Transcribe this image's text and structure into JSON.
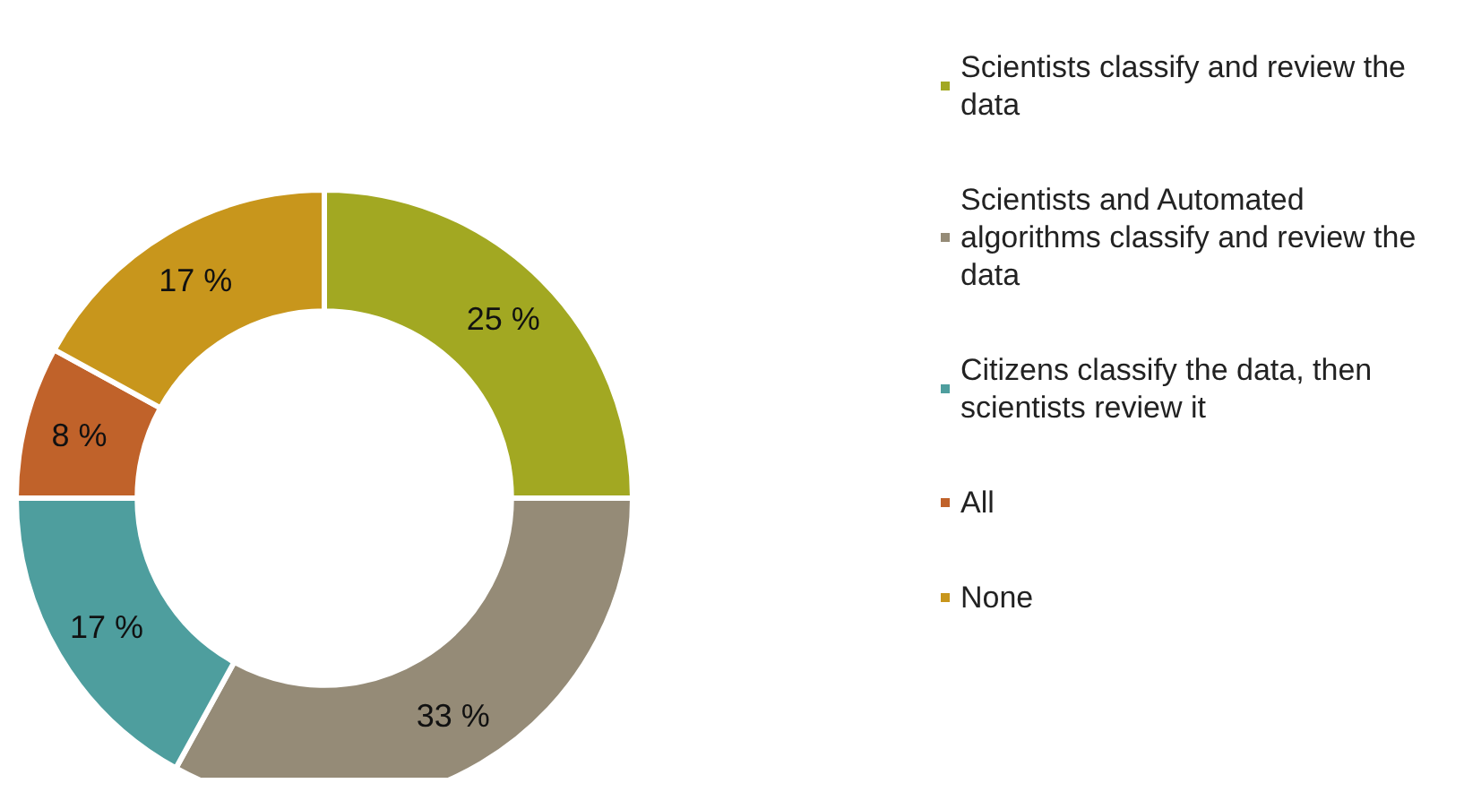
{
  "chart_data": {
    "type": "donut",
    "categories": [
      "Scientists classify and review the data",
      "Scientists and Automated algorithms classify and review the data",
      "Citizens classify the data, then scientists review it",
      "All",
      "None"
    ],
    "values": [
      25,
      33,
      17,
      8,
      17
    ],
    "value_labels": [
      "25 %",
      "33 %",
      "17 %",
      "8 %",
      "17 %"
    ],
    "colors": [
      "#a2a822",
      "#958b77",
      "#4e9e9e",
      "#c0622a",
      "#c8961c"
    ],
    "legend": "right"
  }
}
